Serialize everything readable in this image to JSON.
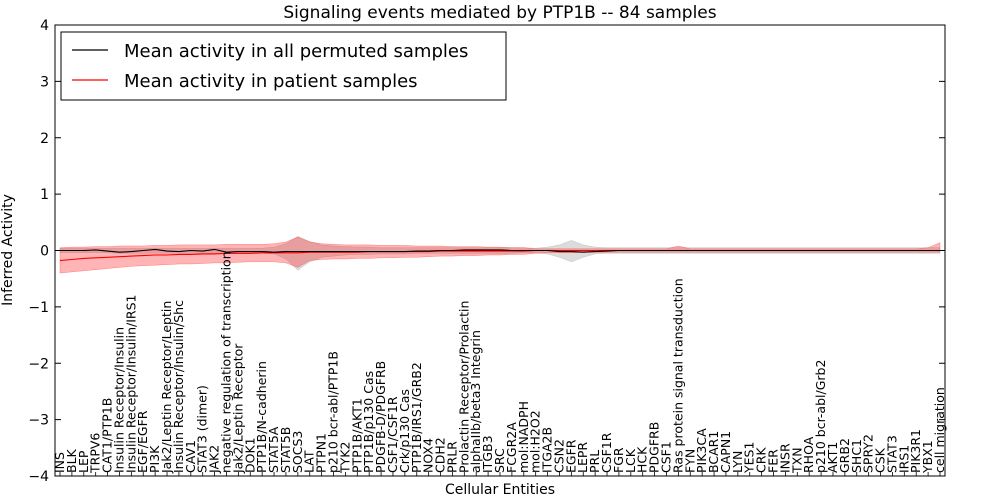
{
  "chart_data": {
    "type": "line",
    "title": "Signaling events mediated by PTP1B -- 84 samples",
    "xlabel": "Cellular Entities",
    "ylabel": "Inferred Activity",
    "ylim": [
      -4,
      4
    ],
    "yticks": [
      -4,
      -3,
      -2,
      -1,
      0,
      1,
      2,
      3,
      4
    ],
    "grid": false,
    "legend": {
      "position": "top-left",
      "entries": [
        {
          "label": "Mean activity in all permuted samples",
          "color": "#000000"
        },
        {
          "label": "Mean activity in patient samples",
          "color": "#ff0000"
        }
      ]
    },
    "categories": [
      "INS",
      "BLK",
      "LEP",
      "TRPV6",
      "CAT1/PTP1B",
      "Insulin Receptor/Insulin",
      "Insulin Receptor/Insulin/IRS1",
      "EGF/EGFR",
      "PI3K",
      "Jak2/Leptin Receptor/Leptin",
      "Insulin Receptor/Insulin/Shc",
      "CAV1",
      "STAT3 (dimer)",
      "JAK2",
      "negative regulation of transcription",
      "Jak2/Leptin Receptor",
      "DOK1",
      "PTP1B/N-cadherin",
      "STAT5A",
      "STAT5B",
      "SOCS3",
      "LAT",
      "PTPN1",
      "p210 bcr-abl/PTP1B",
      "TYK2",
      "PTP1B/AKT1",
      "PTP1B/p130 Cas",
      "PDGFB-D/PDGFRB",
      "CSF1/CSF1R",
      "Crk/p130 Cas",
      "PTP1B/IRS1/GRB2",
      "NOX4",
      "CDH2",
      "PRLR",
      "Prolactin Receptor/Prolactin",
      "alphaIIb/beta3 Integrin",
      "ITGB3",
      "SRC",
      "FCGR2A",
      "mol:NADPH",
      "mol:H2O2",
      "ITGA2B",
      "CSN2",
      "EGFR",
      "LEPR",
      "PRL",
      "CSF1R",
      "FGR",
      "LCK",
      "HCK",
      "PDGFRB",
      "CSF1",
      "Ras protein signal transduction",
      "FYN",
      "PIK3CA",
      "BCAR1",
      "CAPN1",
      "LYN",
      "YES1",
      "CRK",
      "FER",
      "INSR",
      "TXN",
      "RHOA",
      "p210 bcr-abl/Grb2",
      "AKT1",
      "GRB2",
      "SHC1",
      "SPRY2",
      "CSK",
      "STAT3",
      "IRS1",
      "PIK3R1",
      "YBX1",
      "cell migration"
    ],
    "series": [
      {
        "name": "Mean activity in patient samples",
        "values": [
          -0.18,
          -0.16,
          -0.14,
          -0.13,
          -0.12,
          -0.11,
          -0.1,
          -0.09,
          -0.08,
          -0.08,
          -0.07,
          -0.07,
          -0.06,
          -0.06,
          -0.05,
          -0.05,
          -0.05,
          -0.04,
          -0.04,
          -0.04,
          -0.04,
          -0.03,
          -0.03,
          -0.03,
          -0.03,
          -0.03,
          -0.02,
          -0.02,
          -0.02,
          -0.02,
          -0.02,
          -0.02,
          -0.01,
          -0.01,
          -0.01,
          -0.01,
          -0.01,
          -0.01,
          -0.01,
          -0.01,
          0,
          0,
          0,
          0,
          0,
          0,
          0,
          0,
          0,
          0,
          0,
          0,
          0,
          0,
          0,
          0,
          0,
          0,
          0,
          0,
          0,
          0,
          0,
          0,
          0,
          0,
          0,
          0,
          0,
          0,
          0,
          0,
          0,
          0,
          0
        ],
        "band_low": [
          -0.4,
          -0.38,
          -0.36,
          -0.34,
          -0.32,
          -0.3,
          -0.28,
          -0.27,
          -0.26,
          -0.25,
          -0.24,
          -0.24,
          -0.23,
          -0.22,
          -0.22,
          -0.21,
          -0.2,
          -0.2,
          -0.2,
          -0.22,
          -0.3,
          -0.18,
          -0.16,
          -0.15,
          -0.15,
          -0.14,
          -0.14,
          -0.13,
          -0.13,
          -0.12,
          -0.12,
          -0.11,
          -0.1,
          -0.1,
          -0.09,
          -0.09,
          -0.08,
          -0.08,
          -0.07,
          -0.07,
          -0.05,
          -0.04,
          -0.04,
          -0.04,
          -0.03,
          -0.03,
          -0.03,
          -0.03,
          -0.03,
          -0.03,
          -0.03,
          -0.03,
          -0.03,
          -0.03,
          -0.03,
          -0.03,
          -0.03,
          -0.03,
          -0.03,
          -0.03,
          -0.03,
          -0.03,
          -0.03,
          -0.03,
          -0.03,
          -0.03,
          -0.03,
          -0.03,
          -0.03,
          -0.03,
          -0.03,
          -0.03,
          -0.03,
          -0.03,
          -0.03
        ],
        "band_high": [
          0.05,
          0.06,
          0.06,
          0.07,
          0.07,
          0.08,
          0.08,
          0.08,
          0.09,
          0.09,
          0.1,
          0.1,
          0.1,
          0.1,
          0.11,
          0.11,
          0.11,
          0.11,
          0.12,
          0.15,
          0.24,
          0.15,
          0.12,
          0.11,
          0.1,
          0.1,
          0.1,
          0.09,
          0.09,
          0.09,
          0.08,
          0.08,
          0.08,
          0.07,
          0.07,
          0.07,
          0.06,
          0.06,
          0.05,
          0.05,
          0.03,
          0.03,
          0.03,
          0.03,
          0.03,
          0.03,
          0.03,
          0.03,
          0.03,
          0.03,
          0.03,
          0.03,
          0.08,
          0.03,
          0.03,
          0.03,
          0.03,
          0.03,
          0.03,
          0.03,
          0.03,
          0.03,
          0.03,
          0.03,
          0.03,
          0.03,
          0.03,
          0.03,
          0.03,
          0.03,
          0.03,
          0.03,
          0.03,
          0.05,
          0.14
        ]
      },
      {
        "name": "Mean activity in all permuted samples",
        "values": [
          0,
          0,
          0,
          0.01,
          -0.01,
          -0.03,
          -0.02,
          0,
          0.02,
          -0.01,
          -0.02,
          0,
          -0.01,
          0.02,
          -0.03,
          -0.02,
          -0.02,
          -0.02,
          -0.03,
          -0.02,
          -0.02,
          -0.02,
          -0.02,
          -0.02,
          -0.02,
          -0.02,
          -0.02,
          -0.02,
          -0.02,
          -0.02,
          -0.01,
          -0.01,
          0,
          0,
          0.01,
          0.01,
          0.01,
          0.01,
          0,
          0,
          0,
          0,
          -0.02,
          -0.02,
          -0.03,
          -0.02,
          -0.01,
          0,
          0,
          0,
          0,
          0,
          0,
          0,
          0,
          0,
          0,
          0,
          0,
          0,
          0,
          0,
          0,
          0,
          0,
          0,
          0,
          0,
          0,
          0,
          0,
          0,
          0,
          0,
          0
        ],
        "band_low": [
          -0.04,
          -0.04,
          -0.04,
          -0.04,
          -0.04,
          -0.05,
          -0.05,
          -0.05,
          -0.05,
          -0.05,
          -0.05,
          -0.05,
          -0.05,
          -0.05,
          -0.05,
          -0.05,
          -0.05,
          -0.05,
          -0.06,
          -0.15,
          -0.35,
          -0.2,
          -0.12,
          -0.1,
          -0.08,
          -0.07,
          -0.07,
          -0.06,
          -0.06,
          -0.06,
          -0.05,
          -0.05,
          -0.05,
          -0.05,
          -0.05,
          -0.05,
          -0.05,
          -0.05,
          -0.05,
          -0.04,
          -0.04,
          -0.06,
          -0.12,
          -0.2,
          -0.12,
          -0.06,
          -0.05,
          -0.05,
          -0.05,
          -0.05,
          -0.05,
          -0.05,
          -0.05,
          -0.05,
          -0.05,
          -0.05,
          -0.05,
          -0.05,
          -0.05,
          -0.05,
          -0.05,
          -0.05,
          -0.05,
          -0.05,
          -0.05,
          -0.05,
          -0.05,
          -0.05,
          -0.05,
          -0.05,
          -0.05,
          -0.05,
          -0.05,
          -0.05,
          -0.05
        ],
        "band_high": [
          0.04,
          0.04,
          0.04,
          0.04,
          0.04,
          0.04,
          0.04,
          0.04,
          0.04,
          0.04,
          0.04,
          0.04,
          0.04,
          0.04,
          0.04,
          0.04,
          0.04,
          0.04,
          0.06,
          0.12,
          0.25,
          0.16,
          0.1,
          0.08,
          0.07,
          0.06,
          0.06,
          0.05,
          0.05,
          0.05,
          0.05,
          0.05,
          0.05,
          0.05,
          0.05,
          0.05,
          0.05,
          0.05,
          0.05,
          0.05,
          0.04,
          0.06,
          0.1,
          0.18,
          0.1,
          0.06,
          0.05,
          0.05,
          0.05,
          0.05,
          0.05,
          0.05,
          0.05,
          0.05,
          0.05,
          0.05,
          0.05,
          0.05,
          0.05,
          0.05,
          0.05,
          0.05,
          0.05,
          0.05,
          0.05,
          0.05,
          0.05,
          0.05,
          0.05,
          0.05,
          0.05,
          0.05,
          0.05,
          0.05,
          0.05
        ]
      }
    ]
  }
}
